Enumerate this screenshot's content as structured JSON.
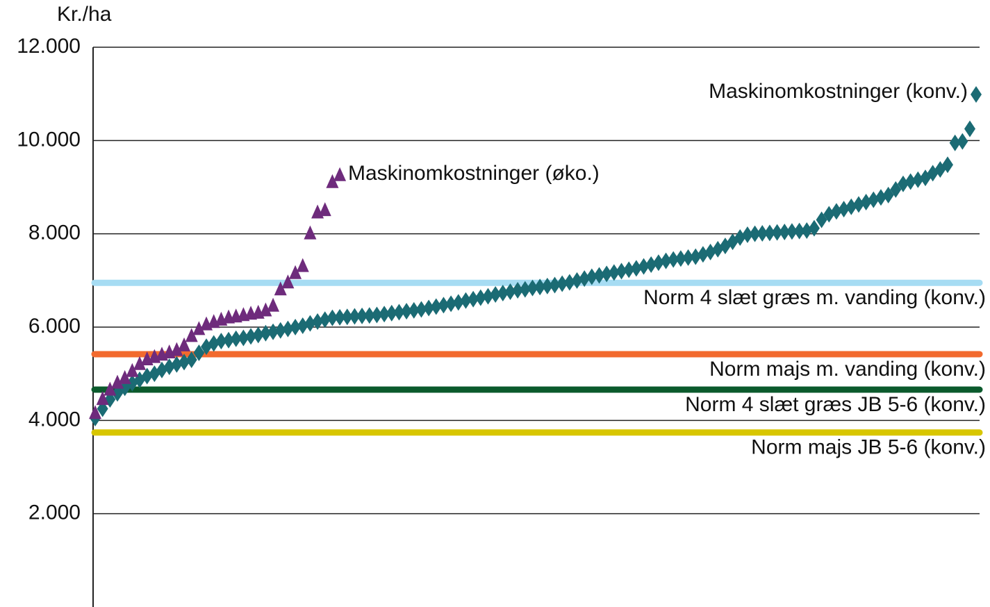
{
  "chart_data": {
    "type": "scatter",
    "ylabel": "Kr./ha",
    "ylim": [
      0,
      12000
    ],
    "yticks": [
      {
        "value": 2000,
        "label": "2.000"
      },
      {
        "value": 4000,
        "label": "4.000"
      },
      {
        "value": 6000,
        "label": "6.000"
      },
      {
        "value": 8000,
        "label": "8.000"
      },
      {
        "value": 10000,
        "label": "10.000"
      },
      {
        "value": 12000,
        "label": "12.000"
      }
    ],
    "grid": true,
    "series": [
      {
        "name": "Maskinomkostninger (konv.)",
        "color": "#1b6b74",
        "marker": "diamond",
        "values": [
          4050,
          4250,
          4450,
          4580,
          4700,
          4800,
          4870,
          4950,
          5000,
          5080,
          5150,
          5200,
          5250,
          5300,
          5450,
          5580,
          5650,
          5700,
          5720,
          5750,
          5770,
          5800,
          5830,
          5870,
          5900,
          5930,
          5960,
          6000,
          6030,
          6080,
          6120,
          6160,
          6200,
          6210,
          6220,
          6230,
          6240,
          6250,
          6260,
          6280,
          6300,
          6320,
          6340,
          6360,
          6380,
          6410,
          6440,
          6470,
          6500,
          6530,
          6570,
          6600,
          6630,
          6660,
          6700,
          6730,
          6760,
          6790,
          6810,
          6840,
          6860,
          6880,
          6900,
          6930,
          6960,
          7000,
          7040,
          7080,
          7110,
          7140,
          7170,
          7200,
          7230,
          7260,
          7300,
          7340,
          7380,
          7420,
          7450,
          7470,
          7490,
          7510,
          7560,
          7610,
          7670,
          7740,
          7830,
          7920,
          7980,
          8000,
          8010,
          8020,
          8030,
          8040,
          8050,
          8060,
          8070,
          8120,
          8300,
          8420,
          8480,
          8530,
          8580,
          8630,
          8680,
          8730,
          8780,
          8830,
          8950,
          9070,
          9120,
          9160,
          9200,
          9300,
          9380,
          9480,
          9950,
          9980,
          10250
        ]
      },
      {
        "name": "Maskinomkostninger (øko.)",
        "color": "#6e2b7c",
        "marker": "triangle",
        "values": [
          4150,
          4450,
          4650,
          4800,
          4900,
          5050,
          5200,
          5300,
          5350,
          5400,
          5450,
          5500,
          5600,
          5800,
          5950,
          6050,
          6100,
          6150,
          6200,
          6220,
          6250,
          6280,
          6300,
          6350,
          6450,
          6800,
          6950,
          7150,
          7300,
          8000,
          8450,
          8500,
          9100,
          9250
        ]
      }
    ],
    "reference_lines": [
      {
        "name": "Norm 4 slæt græs m. vanding (konv.)",
        "value": 6950,
        "color": "#a6dcf3"
      },
      {
        "name": "Norm majs m. vanding (konv.)",
        "value": 5420,
        "color": "#f26a2e"
      },
      {
        "name": "Norm 4 slæt græs JB 5-6 (konv.)",
        "value": 4660,
        "color": "#0b5a2c"
      },
      {
        "name": "Norm majs JB 5-6 (konv.)",
        "value": 3740,
        "color": "#d8c600"
      }
    ]
  }
}
